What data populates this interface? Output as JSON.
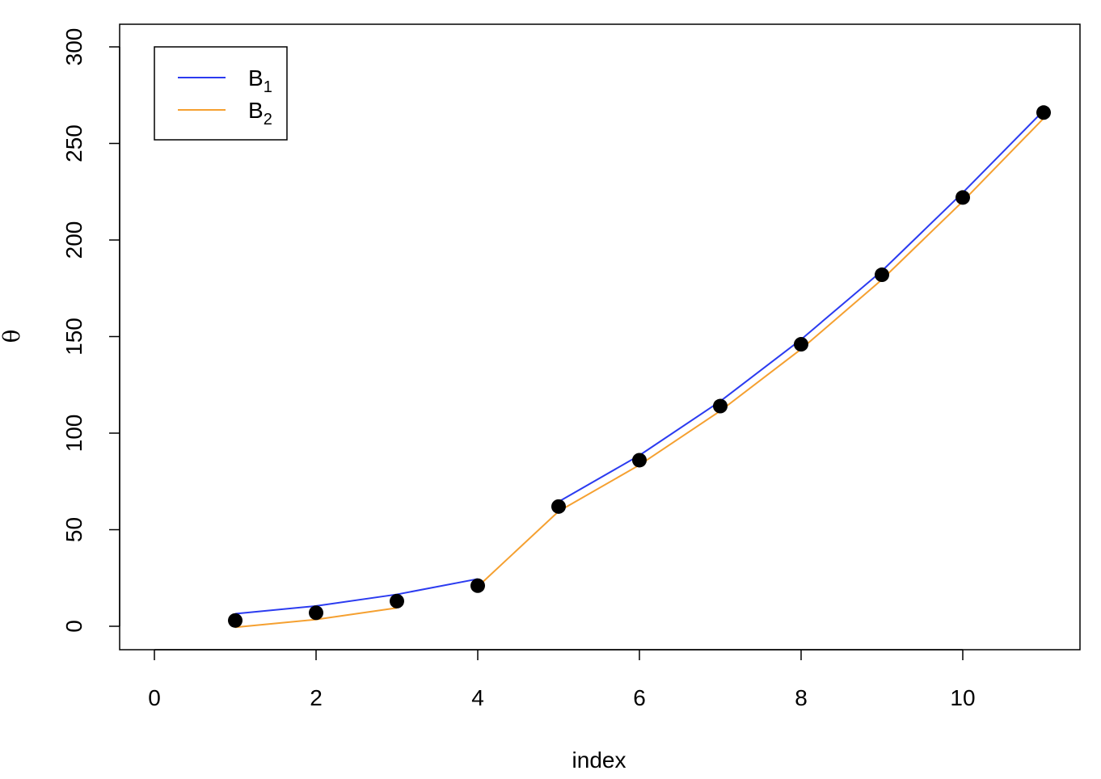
{
  "chart_data": {
    "type": "line",
    "title": "",
    "xlabel": "index",
    "ylabel": "θ",
    "xlim": [
      0,
      11
    ],
    "ylim": [
      0,
      300
    ],
    "x_ticks": [
      0,
      2,
      4,
      6,
      8,
      10
    ],
    "y_ticks": [
      0,
      50,
      100,
      150,
      200,
      250,
      300
    ],
    "grid": false,
    "legend_position": "top-left",
    "points": {
      "x": [
        1,
        2,
        3,
        4,
        5,
        6,
        7,
        8,
        9,
        10,
        11
      ],
      "y": [
        3,
        7,
        13,
        21,
        62,
        86,
        114,
        146,
        182,
        222,
        266
      ],
      "color": "#000000"
    },
    "series": [
      {
        "legend_base": "B",
        "legend_sub": "1",
        "color": "#2b3bf0",
        "segments": [
          {
            "x": [
              1,
              2,
              3,
              4
            ],
            "y": [
              6.5,
              10.5,
              16.5,
              24.5
            ]
          },
          {
            "x": [
              5,
              6,
              7,
              8,
              9,
              10,
              11
            ],
            "y": [
              64.5,
              88.5,
              116.5,
              148.5,
              184,
              224.5,
              267
            ]
          }
        ]
      },
      {
        "legend_base": "B",
        "legend_sub": "2",
        "color": "#f5a030",
        "segments": [
          {
            "x": [
              1,
              2,
              3
            ],
            "y": [
              -0.5,
              3.5,
              9.5
            ]
          },
          {
            "x": [
              4,
              5,
              6,
              7,
              8,
              9,
              10,
              11
            ],
            "y": [
              20.5,
              59.5,
              83.5,
              111.5,
              143.5,
              179.5,
              220,
              263
            ]
          }
        ]
      }
    ]
  }
}
